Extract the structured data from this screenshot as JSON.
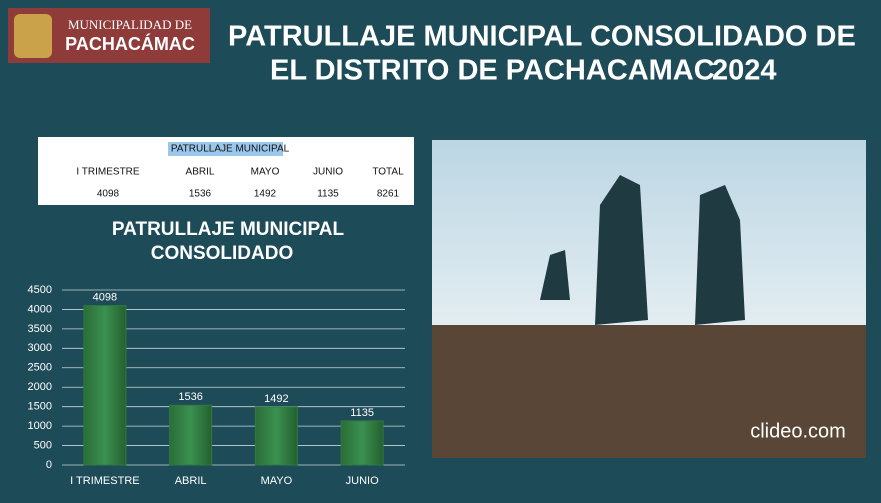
{
  "header": {
    "logo_line1": "MUNICIPALIDAD DE",
    "logo_line2": "PACHACÁMAC",
    "title_line1": "PATRULLAJE MUNICIPAL CONSOLIDADO DE",
    "title_line2": "EL DISTRITO DE PACHACAMAC",
    "title_year": "2024"
  },
  "table": {
    "title": "PATRULLAJE MUNICIPAL",
    "columns": [
      "I TRIMESTRE",
      "ABRIL",
      "MAYO",
      "JUNIO",
      "TOTAL"
    ],
    "rows": [
      [
        4098,
        1536,
        1492,
        1135,
        8261
      ]
    ]
  },
  "photo": {
    "watermark": "clideo.com"
  },
  "chart_data": {
    "type": "bar",
    "title_lines": [
      "PATRULLAJE MUNICIPAL",
      "CONSOLIDADO"
    ],
    "categories": [
      "I TRIMESTRE",
      "ABRIL",
      "MAYO",
      "JUNIO"
    ],
    "values": [
      4098,
      1536,
      1492,
      1135
    ],
    "color": "#2f7a3f",
    "ylim": [
      0,
      4500
    ],
    "yticks": [
      0,
      500,
      1000,
      1500,
      2000,
      2500,
      3000,
      3500,
      4000,
      4500
    ],
    "grid": true
  }
}
